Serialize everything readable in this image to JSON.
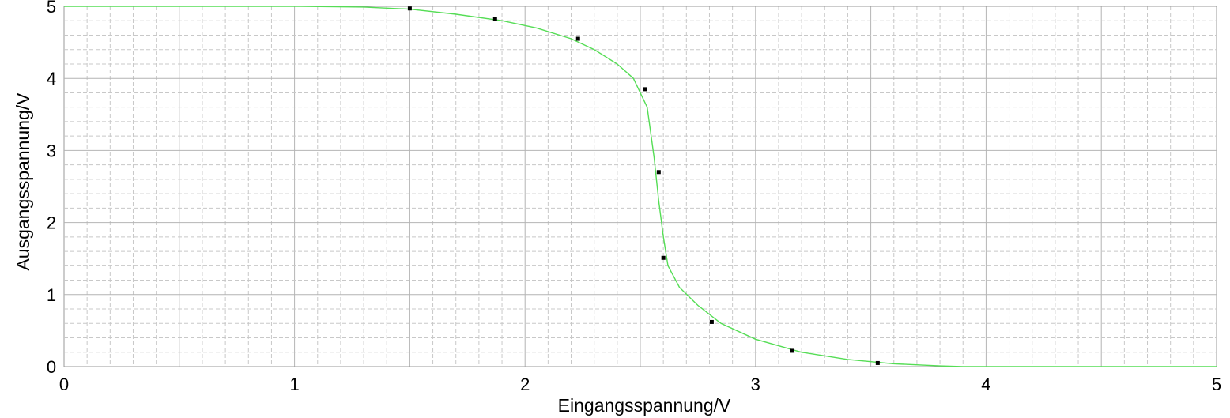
{
  "chart_data": {
    "type": "scatter",
    "title": "",
    "xlabel": "Eingangsspannung/V",
    "ylabel": "Ausgangsspannung/V",
    "xlim": [
      0,
      5
    ],
    "ylim": [
      0,
      5
    ],
    "x_ticks": [
      "0",
      "1",
      "2",
      "3",
      "4",
      "5"
    ],
    "y_ticks": [
      "0",
      "1",
      "2",
      "3",
      "4",
      "5"
    ],
    "grid": true,
    "legend": "none",
    "colors": {
      "fit_line": "#55dd55",
      "points": "#000000",
      "grid_major": "#b4b4b4",
      "grid_minor": "#c8c8c8"
    },
    "series": [
      {
        "kind": "points",
        "x": [
          1.5,
          1.87,
          2.23,
          2.52,
          2.58,
          2.6,
          2.81,
          3.16,
          3.53
        ],
        "y": [
          4.97,
          4.83,
          4.55,
          3.85,
          2.7,
          1.51,
          0.62,
          0.22,
          0.05
        ]
      },
      {
        "kind": "fit-curve",
        "x": [
          0,
          1.0,
          1.3,
          1.5,
          1.7,
          1.9,
          2.05,
          2.2,
          2.3,
          2.4,
          2.47,
          2.53,
          2.56,
          2.58,
          2.6,
          2.62,
          2.67,
          2.75,
          2.85,
          3.0,
          3.2,
          3.4,
          3.6,
          3.8,
          3.9,
          5.0
        ],
        "y": [
          5.0,
          5.0,
          4.99,
          4.96,
          4.89,
          4.8,
          4.7,
          4.55,
          4.4,
          4.2,
          4.0,
          3.6,
          2.9,
          2.3,
          1.8,
          1.4,
          1.1,
          0.85,
          0.6,
          0.38,
          0.2,
          0.1,
          0.04,
          0.01,
          0.0,
          0.0
        ]
      }
    ]
  }
}
